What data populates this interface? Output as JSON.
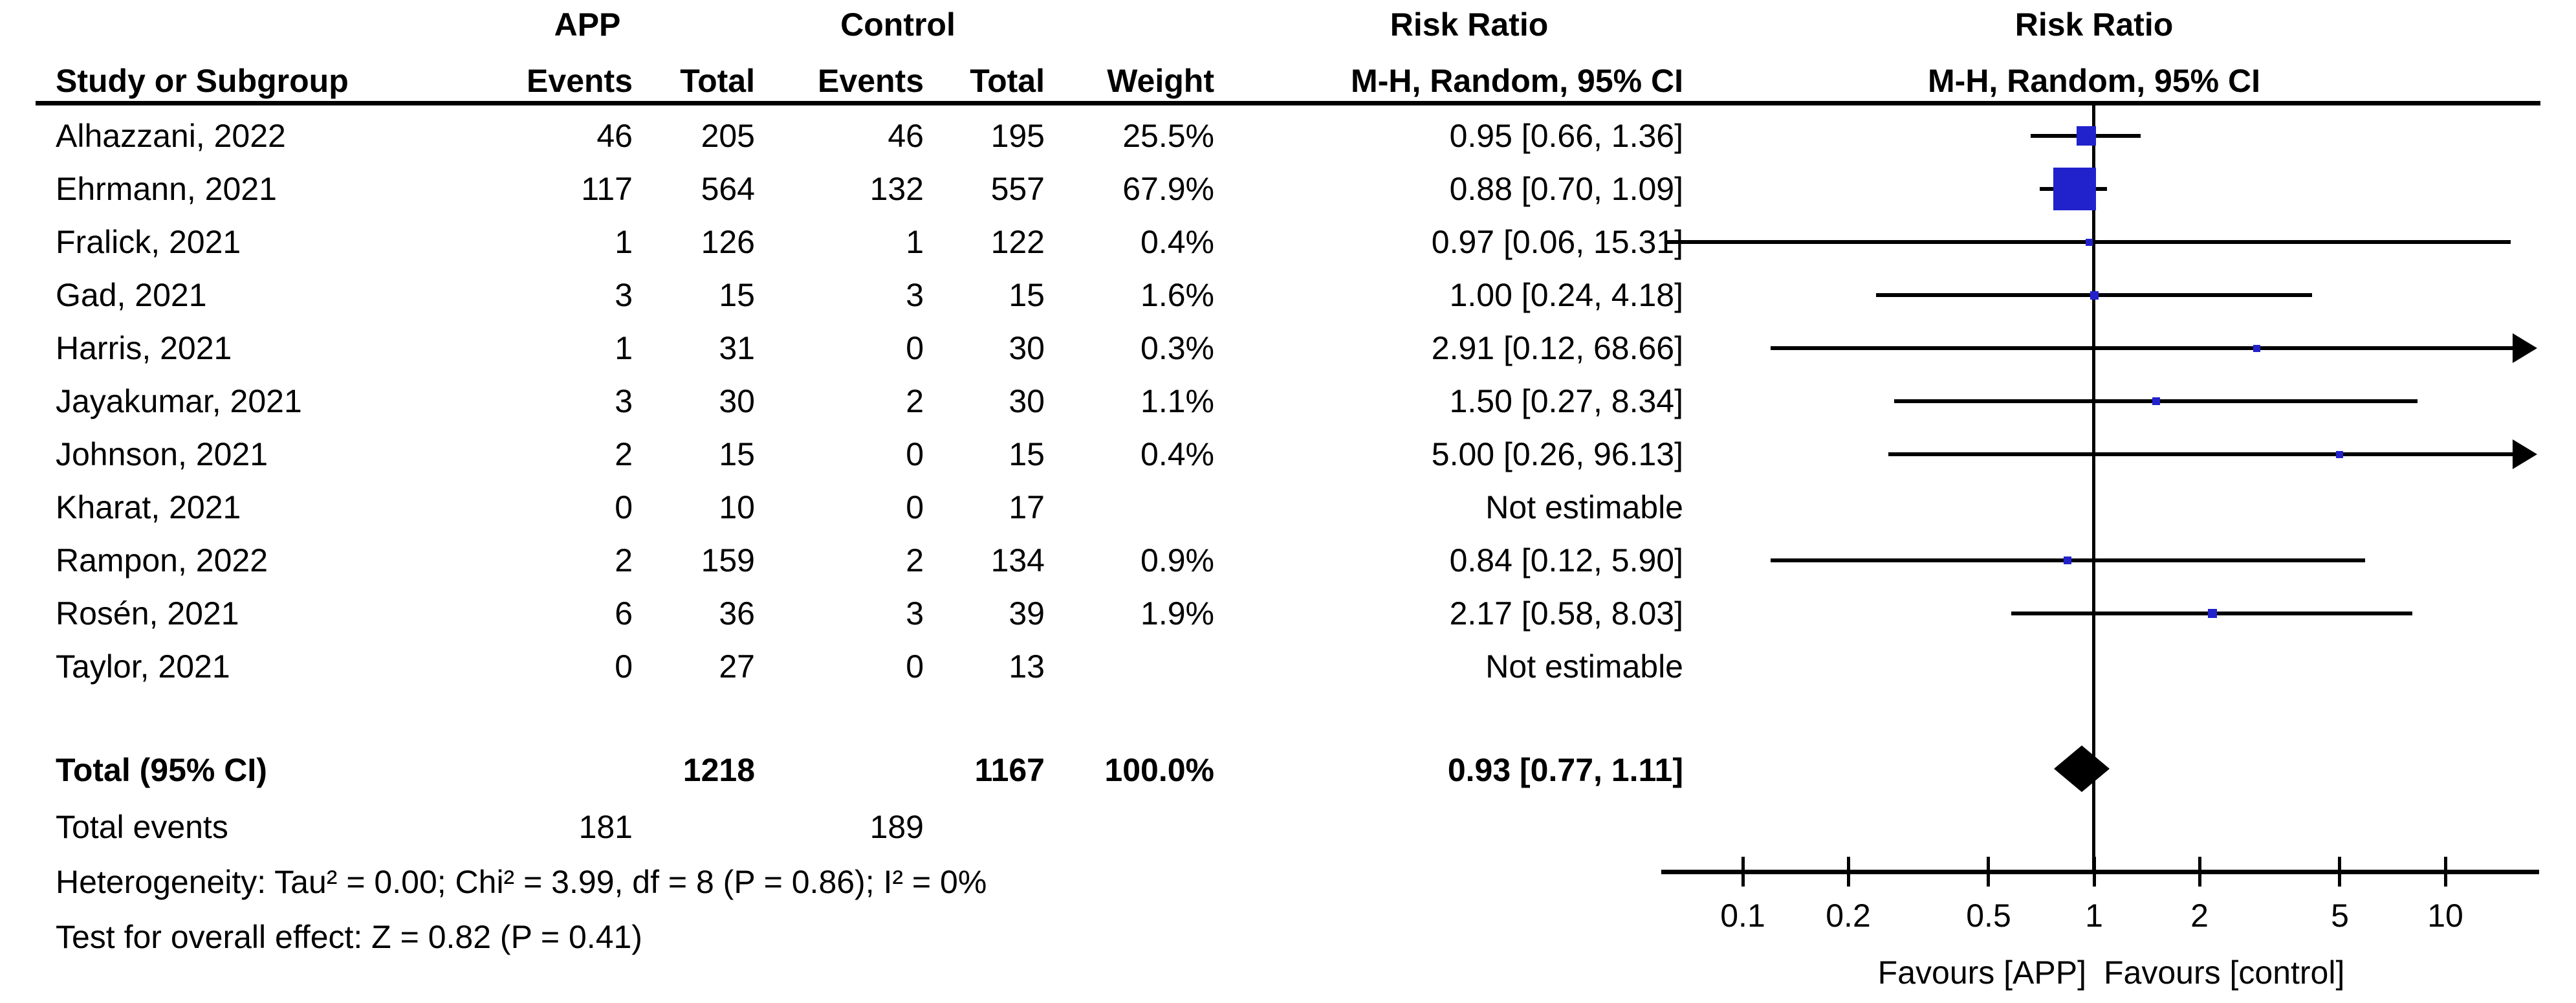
{
  "chart_data": {
    "type": "forest",
    "effect_measure": "Risk Ratio",
    "model": "M-H, Random, 95% CI",
    "header": {
      "group_app": "APP",
      "group_control": "Control",
      "risk_ratio_text_col": "Risk Ratio",
      "risk_ratio_plot_col": "Risk Ratio",
      "col_study": "Study or Subgroup",
      "col_app_events": "Events",
      "col_app_total": "Total",
      "col_control_events": "Events",
      "col_control_total": "Total",
      "col_weight": "Weight",
      "col_mh_text": "M-H, Random, 95% CI",
      "col_mh_plot": "M-H, Random, 95% CI"
    },
    "studies": [
      {
        "name": "Alhazzani, 2022",
        "app_events": "46",
        "app_total": "205",
        "control_events": "46",
        "control_total": "195",
        "weight": "25.5%",
        "weight_value": 25.5,
        "rr_text": "0.95 [0.66, 1.36]",
        "rr": 0.95,
        "ci_low": 0.66,
        "ci_high": 1.36,
        "estimable": true
      },
      {
        "name": "Ehrmann, 2021",
        "app_events": "117",
        "app_total": "564",
        "control_events": "132",
        "control_total": "557",
        "weight": "67.9%",
        "weight_value": 67.9,
        "rr_text": "0.88 [0.70, 1.09]",
        "rr": 0.88,
        "ci_low": 0.7,
        "ci_high": 1.09,
        "estimable": true
      },
      {
        "name": "Fralick, 2021",
        "app_events": "1",
        "app_total": "126",
        "control_events": "1",
        "control_total": "122",
        "weight": "0.4%",
        "weight_value": 0.4,
        "rr_text": "0.97 [0.06, 15.31]",
        "rr": 0.97,
        "ci_low": 0.06,
        "ci_high": 15.31,
        "estimable": true
      },
      {
        "name": "Gad, 2021",
        "app_events": "3",
        "app_total": "15",
        "control_events": "3",
        "control_total": "15",
        "weight": "1.6%",
        "weight_value": 1.6,
        "rr_text": "1.00 [0.24, 4.18]",
        "rr": 1.0,
        "ci_low": 0.24,
        "ci_high": 4.18,
        "estimable": true
      },
      {
        "name": "Harris, 2021",
        "app_events": "1",
        "app_total": "31",
        "control_events": "0",
        "control_total": "30",
        "weight": "0.3%",
        "weight_value": 0.3,
        "rr_text": "2.91 [0.12, 68.66]",
        "rr": 2.91,
        "ci_low": 0.12,
        "ci_high": 68.66,
        "estimable": true
      },
      {
        "name": "Jayakumar, 2021",
        "app_events": "3",
        "app_total": "30",
        "control_events": "2",
        "control_total": "30",
        "weight": "1.1%",
        "weight_value": 1.1,
        "rr_text": "1.50 [0.27, 8.34]",
        "rr": 1.5,
        "ci_low": 0.27,
        "ci_high": 8.34,
        "estimable": true
      },
      {
        "name": "Johnson, 2021",
        "app_events": "2",
        "app_total": "15",
        "control_events": "0",
        "control_total": "15",
        "weight": "0.4%",
        "weight_value": 0.4,
        "rr_text": "5.00 [0.26, 96.13]",
        "rr": 5.0,
        "ci_low": 0.26,
        "ci_high": 96.13,
        "estimable": true
      },
      {
        "name": "Kharat, 2021",
        "app_events": "0",
        "app_total": "10",
        "control_events": "0",
        "control_total": "17",
        "weight": "",
        "weight_value": 0,
        "rr_text": "Not estimable",
        "rr": null,
        "ci_low": null,
        "ci_high": null,
        "estimable": false
      },
      {
        "name": "Rampon, 2022",
        "app_events": "2",
        "app_total": "159",
        "control_events": "2",
        "control_total": "134",
        "weight": "0.9%",
        "weight_value": 0.9,
        "rr_text": "0.84 [0.12, 5.90]",
        "rr": 0.84,
        "ci_low": 0.12,
        "ci_high": 5.9,
        "estimable": true
      },
      {
        "name": "Rosén, 2021",
        "app_events": "6",
        "app_total": "36",
        "control_events": "3",
        "control_total": "39",
        "weight": "1.9%",
        "weight_value": 1.9,
        "rr_text": "2.17 [0.58, 8.03]",
        "rr": 2.17,
        "ci_low": 0.58,
        "ci_high": 8.03,
        "estimable": true
      },
      {
        "name": "Taylor, 2021",
        "app_events": "0",
        "app_total": "27",
        "control_events": "0",
        "control_total": "13",
        "weight": "",
        "weight_value": 0,
        "rr_text": "Not estimable",
        "rr": null,
        "ci_low": null,
        "ci_high": null,
        "estimable": false
      }
    ],
    "total_row": {
      "label": "Total (95% CI)",
      "app_total": "1218",
      "control_total": "1167",
      "weight": "100.0%",
      "rr_text": "0.93 [0.77, 1.11]",
      "rr": 0.93,
      "ci_low": 0.77,
      "ci_high": 1.11
    },
    "total_events_row": {
      "label": "Total events",
      "app_events": "181",
      "control_events": "189"
    },
    "heterogeneity": "Heterogeneity: Tau² = 0.00; Chi² = 3.99, df = 8 (P = 0.86); I² = 0%",
    "overall_effect": "Test for overall effect: Z = 0.82 (P = 0.41)",
    "axis": {
      "scale": "log",
      "ticks": [
        0.1,
        0.2,
        0.5,
        1,
        2,
        5,
        10
      ],
      "tick_labels": [
        "0.1",
        "0.2",
        "0.5",
        "1",
        "2",
        "5",
        "10"
      ],
      "min": 0.059,
      "max": 18.0,
      "favours_left": "Favours [APP]",
      "favours_right": "Favours [control]"
    },
    "colors": {
      "marker_blue": "#2222CC",
      "diamond_black": "#000000",
      "line_black": "#000000",
      "background": "#FFFFFF"
    }
  }
}
